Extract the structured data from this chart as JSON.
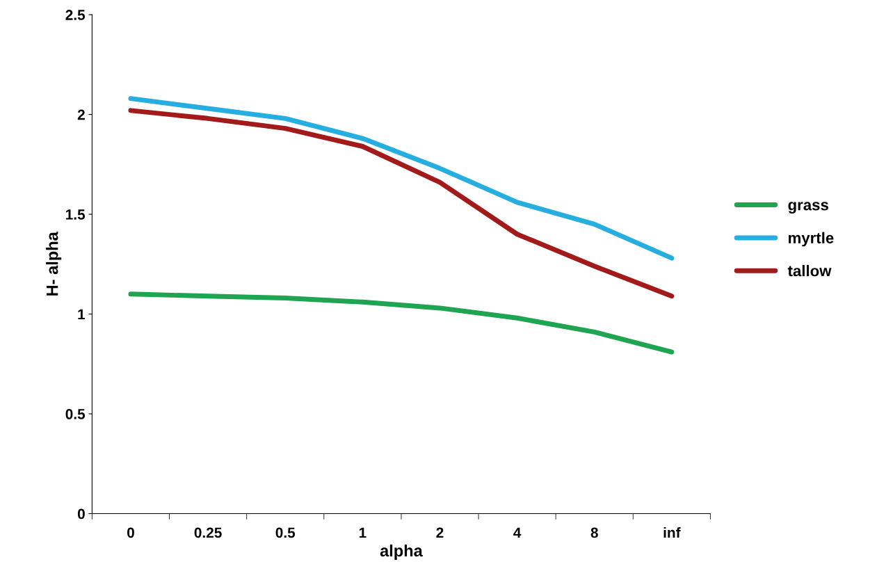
{
  "chart_data": {
    "type": "line",
    "xlabel": "alpha",
    "ylabel": "H- alpha",
    "categories": [
      "0",
      "0.25",
      "0.5",
      "1",
      "2",
      "4",
      "8",
      "inf"
    ],
    "series": [
      {
        "name": "grass",
        "color": "#1fa552",
        "values": [
          1.1,
          1.09,
          1.08,
          1.06,
          1.03,
          0.98,
          0.91,
          0.81
        ]
      },
      {
        "name": "myrtle",
        "color": "#27aee0",
        "values": [
          2.08,
          2.03,
          1.98,
          1.88,
          1.73,
          1.56,
          1.45,
          1.28
        ]
      },
      {
        "name": "tallow",
        "color": "#a21a1a",
        "values": [
          2.02,
          1.98,
          1.93,
          1.84,
          1.66,
          1.4,
          1.24,
          1.09
        ]
      }
    ],
    "ylim": [
      0,
      2.5
    ],
    "yticks": [
      0,
      0.5,
      1,
      1.5,
      2,
      2.5
    ],
    "grid": false,
    "legend": "right",
    "marker": "none",
    "line_style": "solid"
  }
}
